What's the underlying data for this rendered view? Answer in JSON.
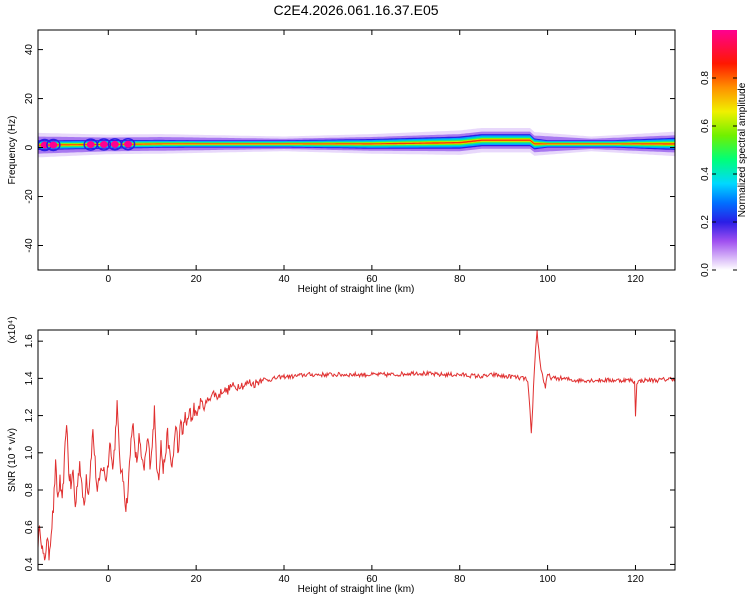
{
  "figure": {
    "title": "C2E4.2026.061.16.37.E05"
  },
  "chart_data": [
    {
      "type": "heatmap",
      "title": "C2E4.2026.061.16.37.E05",
      "xlabel": "Height of straight line (km)",
      "ylabel": "Frequency (Hz)",
      "xlim": [
        -16,
        129
      ],
      "ylim": [
        -50,
        48
      ],
      "x_ticks": [
        0,
        20,
        40,
        60,
        80,
        100,
        120
      ],
      "y_ticks": [
        -40,
        -20,
        0,
        20,
        40
      ],
      "colorbar": {
        "label": "Normalized spectral amplitude",
        "range": [
          0.0,
          1.0
        ],
        "ticks": [
          0.0,
          0.2,
          0.4,
          0.6,
          0.8
        ],
        "colormap": [
          "#ffffff",
          "#d8b8f8",
          "#a050f0",
          "#2a1ee6",
          "#0070ff",
          "#00d8ff",
          "#00ff78",
          "#70f000",
          "#f0f000",
          "#ff9000",
          "#ff1800",
          "#ff0090"
        ]
      },
      "ridge": {
        "description_free": true,
        "center_freq_hz": [
          [
            -16,
            1
          ],
          [
            12,
            1.5
          ],
          [
            20,
            1.5
          ],
          [
            60,
            1.5
          ],
          [
            80,
            2
          ],
          [
            85,
            3
          ],
          [
            96,
            3
          ],
          [
            97,
            1.5
          ],
          [
            100,
            1.5
          ],
          [
            129,
            1.5
          ]
        ],
        "band_halfwidth_hz": [
          [
            -16,
            2
          ],
          [
            20,
            1.5
          ],
          [
            40,
            1.5
          ],
          [
            60,
            2
          ],
          [
            80,
            2.5
          ],
          [
            86,
            2.5
          ],
          [
            96,
            2.5
          ],
          [
            100,
            1.5
          ],
          [
            115,
            1.5
          ],
          [
            129,
            2.5
          ]
        ],
        "halo_halfwidth_hz": [
          [
            -16,
            5
          ],
          [
            0,
            4
          ],
          [
            12,
            4
          ],
          [
            40,
            3
          ],
          [
            60,
            4
          ],
          [
            80,
            5
          ],
          [
            96,
            5
          ],
          [
            110,
            3
          ],
          [
            129,
            5
          ]
        ],
        "blobs_x_km": [
          -14.5,
          -12.5,
          -4,
          -1,
          1.5,
          4.5
        ]
      }
    },
    {
      "type": "line",
      "xlabel": "Height of straight line (km)",
      "ylabel": "SNR (10 * v/v)",
      "y_multiplier": "(x10⁴)",
      "xlim": [
        -16,
        129
      ],
      "ylim": [
        0.37,
        1.66
      ],
      "x_ticks": [
        0,
        20,
        40,
        60,
        80,
        100,
        120
      ],
      "y_ticks": [
        0.4,
        0.6,
        0.8,
        1.0,
        1.2,
        1.4,
        1.6
      ],
      "color": "#e03030",
      "series": [
        {
          "values": [
            [
              -16,
              0.52
            ],
            [
              -15.5,
              0.6
            ],
            [
              -15,
              0.48
            ],
            [
              -14.5,
              0.4
            ],
            [
              -14,
              0.55
            ],
            [
              -13.5,
              0.45
            ],
            [
              -13,
              0.58
            ],
            [
              -12.5,
              0.7
            ],
            [
              -12,
              0.93
            ],
            [
              -11.5,
              0.75
            ],
            [
              -11,
              0.85
            ],
            [
              -10.5,
              0.72
            ],
            [
              -10,
              0.95
            ],
            [
              -9.5,
              1.18
            ],
            [
              -9,
              0.9
            ],
            [
              -8.5,
              0.82
            ],
            [
              -8,
              0.9
            ],
            [
              -7.5,
              0.7
            ],
            [
              -7,
              0.85
            ],
            [
              -6.5,
              0.95
            ],
            [
              -6,
              0.8
            ],
            [
              -5.5,
              0.72
            ],
            [
              -5,
              0.88
            ],
            [
              -4.5,
              0.78
            ],
            [
              -4,
              0.95
            ],
            [
              -3.5,
              1.12
            ],
            [
              -3,
              0.95
            ],
            [
              -2.5,
              0.78
            ],
            [
              -2,
              0.85
            ],
            [
              -1.5,
              0.93
            ],
            [
              -1,
              0.9
            ],
            [
              -0.5,
              0.86
            ],
            [
              0,
              0.95
            ],
            [
              0.5,
              1.08
            ],
            [
              1,
              0.9
            ],
            [
              1.5,
              1.05
            ],
            [
              2,
              1.26
            ],
            [
              2.5,
              1.0
            ],
            [
              3,
              0.88
            ],
            [
              3.5,
              0.85
            ],
            [
              4,
              0.7
            ],
            [
              4.5,
              0.8
            ],
            [
              5,
              1.0
            ],
            [
              5.5,
              1.18
            ],
            [
              6,
              1.02
            ],
            [
              6.5,
              0.95
            ],
            [
              7,
              1.08
            ],
            [
              7.5,
              0.98
            ],
            [
              8,
              0.9
            ],
            [
              8.5,
              0.98
            ],
            [
              9,
              1.08
            ],
            [
              9.5,
              0.95
            ],
            [
              10,
              1.05
            ],
            [
              10.5,
              1.22
            ],
            [
              11,
              0.95
            ],
            [
              11.5,
              0.88
            ],
            [
              12,
              1.05
            ],
            [
              12.5,
              0.9
            ],
            [
              13,
              1.0
            ],
            [
              13.5,
              1.1
            ],
            [
              14,
              0.98
            ],
            [
              14.5,
              0.92
            ],
            [
              15,
              1.05
            ],
            [
              15.5,
              1.15
            ],
            [
              16,
              0.98
            ],
            [
              16.5,
              1.18
            ],
            [
              17,
              1.1
            ],
            [
              17.5,
              1.2
            ],
            [
              18,
              1.15
            ],
            [
              18.5,
              1.22
            ],
            [
              19,
              1.18
            ],
            [
              19.5,
              1.25
            ],
            [
              20,
              1.2
            ],
            [
              21,
              1.27
            ],
            [
              22,
              1.25
            ],
            [
              23,
              1.3
            ],
            [
              24,
              1.32
            ],
            [
              25,
              1.3
            ],
            [
              26,
              1.34
            ],
            [
              27,
              1.33
            ],
            [
              28,
              1.36
            ],
            [
              29,
              1.35
            ],
            [
              30,
              1.37
            ],
            [
              31,
              1.36
            ],
            [
              32,
              1.38
            ],
            [
              33,
              1.37
            ],
            [
              34,
              1.38
            ],
            [
              35,
              1.4
            ],
            [
              36,
              1.39
            ],
            [
              38,
              1.4
            ],
            [
              40,
              1.41
            ],
            [
              42,
              1.41
            ],
            [
              45,
              1.42
            ],
            [
              50,
              1.42
            ],
            [
              55,
              1.42
            ],
            [
              60,
              1.42
            ],
            [
              65,
              1.42
            ],
            [
              70,
              1.43
            ],
            [
              75,
              1.42
            ],
            [
              80,
              1.42
            ],
            [
              85,
              1.41
            ],
            [
              88,
              1.42
            ],
            [
              90,
              1.41
            ],
            [
              92,
              1.41
            ],
            [
              94,
              1.4
            ],
            [
              95,
              1.4
            ],
            [
              95.5,
              1.37
            ],
            [
              96,
              1.22
            ],
            [
              96.3,
              1.1
            ],
            [
              96.6,
              1.25
            ],
            [
              97,
              1.45
            ],
            [
              97.3,
              1.56
            ],
            [
              97.6,
              1.66
            ],
            [
              98,
              1.55
            ],
            [
              98.5,
              1.45
            ],
            [
              99,
              1.4
            ],
            [
              99.5,
              1.35
            ],
            [
              100,
              1.42
            ],
            [
              101,
              1.4
            ],
            [
              103,
              1.4
            ],
            [
              106,
              1.39
            ],
            [
              110,
              1.39
            ],
            [
              115,
              1.39
            ],
            [
              119,
              1.39
            ],
            [
              119.8,
              1.38
            ],
            [
              120,
              1.2
            ],
            [
              120.3,
              1.38
            ],
            [
              122,
              1.39
            ],
            [
              125,
              1.39
            ],
            [
              129,
              1.4
            ]
          ]
        }
      ]
    }
  ]
}
